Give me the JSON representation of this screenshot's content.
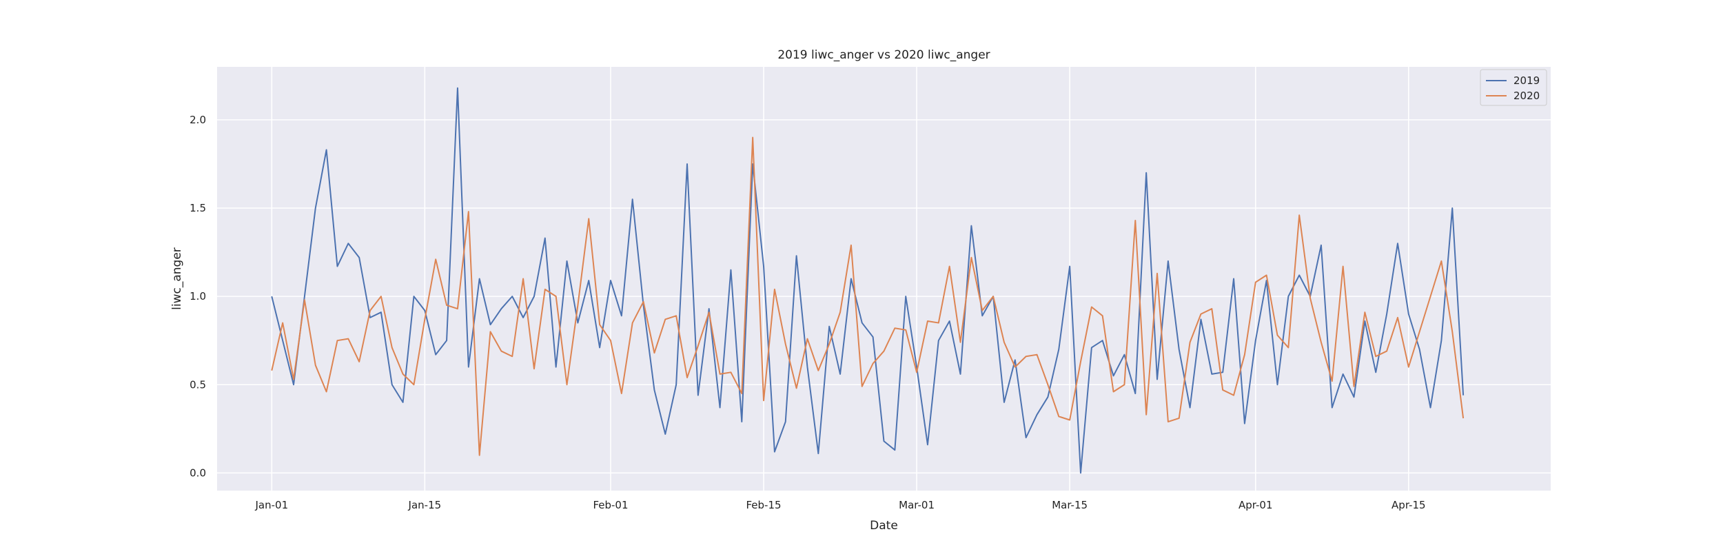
{
  "chart_data": {
    "type": "line",
    "title": "2019 liwc_anger vs 2020 liwc_anger",
    "xlabel": "Date",
    "ylabel": "liwc_anger",
    "x_start": "2019-01-01",
    "x_ticks": [
      {
        "label": "Jan-01",
        "date": "2019-01-01"
      },
      {
        "label": "Jan-15",
        "date": "2019-01-15"
      },
      {
        "label": "Feb-01",
        "date": "2019-02-01"
      },
      {
        "label": "Feb-15",
        "date": "2019-02-15"
      },
      {
        "label": "Mar-01",
        "date": "2019-03-01"
      },
      {
        "label": "Mar-15",
        "date": "2019-03-15"
      },
      {
        "label": "Apr-01",
        "date": "2019-04-01"
      },
      {
        "label": "Apr-15",
        "date": "2019-04-15"
      }
    ],
    "xlim": [
      "2018-12-27",
      "2019-04-28"
    ],
    "y_ticks": [
      0.0,
      0.5,
      1.0,
      1.5,
      2.0
    ],
    "ylim": [
      -0.1,
      2.3
    ],
    "grid": true,
    "legend_position": "upper right",
    "series": [
      {
        "name": "2019",
        "color": "#4c72b0",
        "values": [
          1.0,
          0.75,
          0.5,
          1.0,
          1.5,
          1.83,
          1.17,
          1.3,
          1.22,
          0.88,
          0.91,
          0.5,
          0.4,
          1.0,
          0.92,
          0.67,
          0.75,
          2.18,
          0.6,
          1.1,
          0.84,
          0.93,
          1.0,
          0.88,
          1.0,
          1.33,
          0.6,
          1.2,
          0.85,
          1.09,
          0.71,
          1.09,
          0.89,
          1.55,
          0.95,
          0.47,
          0.22,
          0.5,
          1.75,
          0.44,
          0.93,
          0.37,
          1.15,
          0.29,
          1.75,
          1.17,
          0.12,
          0.29,
          1.23,
          0.6,
          0.11,
          0.83,
          0.56,
          1.1,
          0.85,
          0.77,
          0.18,
          0.13,
          1.0,
          0.6,
          0.16,
          0.75,
          0.86,
          0.56,
          1.4,
          0.89,
          1.0,
          0.4,
          0.64,
          0.2,
          0.33,
          0.43,
          0.7,
          1.17,
          0.0,
          0.71,
          0.75,
          0.55,
          0.67,
          0.45,
          1.7,
          0.53,
          1.2,
          0.7,
          0.37,
          0.87,
          0.56,
          0.57,
          1.1,
          0.28,
          0.75,
          1.09,
          0.5,
          1.0,
          1.12,
          1.0,
          1.29,
          0.37,
          0.56,
          0.43,
          0.86,
          0.57,
          0.9,
          1.3,
          0.9,
          0.7,
          0.37,
          0.75,
          1.5,
          0.44
        ]
      },
      {
        "name": "2020",
        "color": "#dd8452",
        "values": [
          0.58,
          0.85,
          0.53,
          0.98,
          0.61,
          0.46,
          0.75,
          0.76,
          0.63,
          0.92,
          1.0,
          0.71,
          0.56,
          0.5,
          0.87,
          1.21,
          0.95,
          0.93,
          1.48,
          0.1,
          0.8,
          0.69,
          0.66,
          1.1,
          0.59,
          1.04,
          1.0,
          0.5,
          0.95,
          1.44,
          0.84,
          0.75,
          0.45,
          0.85,
          0.97,
          0.68,
          0.87,
          0.89,
          0.54,
          0.72,
          0.91,
          0.56,
          0.57,
          0.45,
          1.9,
          0.41,
          1.04,
          0.73,
          0.48,
          0.76,
          0.58,
          0.73,
          0.91,
          1.29,
          0.49,
          0.62,
          0.69,
          0.82,
          0.81,
          0.57,
          0.86,
          0.85,
          1.17,
          0.74,
          1.22,
          0.92,
          1.0,
          0.74,
          0.6,
          0.66,
          0.67,
          0.5,
          0.32,
          0.3,
          0.63,
          0.94,
          0.89,
          0.46,
          0.5,
          1.43,
          0.33,
          1.13,
          0.29,
          0.31,
          0.74,
          0.9,
          0.93,
          0.47,
          0.44,
          0.67,
          1.08,
          1.12,
          0.78,
          0.71,
          1.46,
          0.99,
          0.74,
          0.52,
          1.17,
          0.49,
          0.91,
          0.66,
          0.69,
          0.88,
          0.6,
          0.8,
          1.0,
          1.2,
          0.8,
          0.31
        ]
      }
    ]
  }
}
